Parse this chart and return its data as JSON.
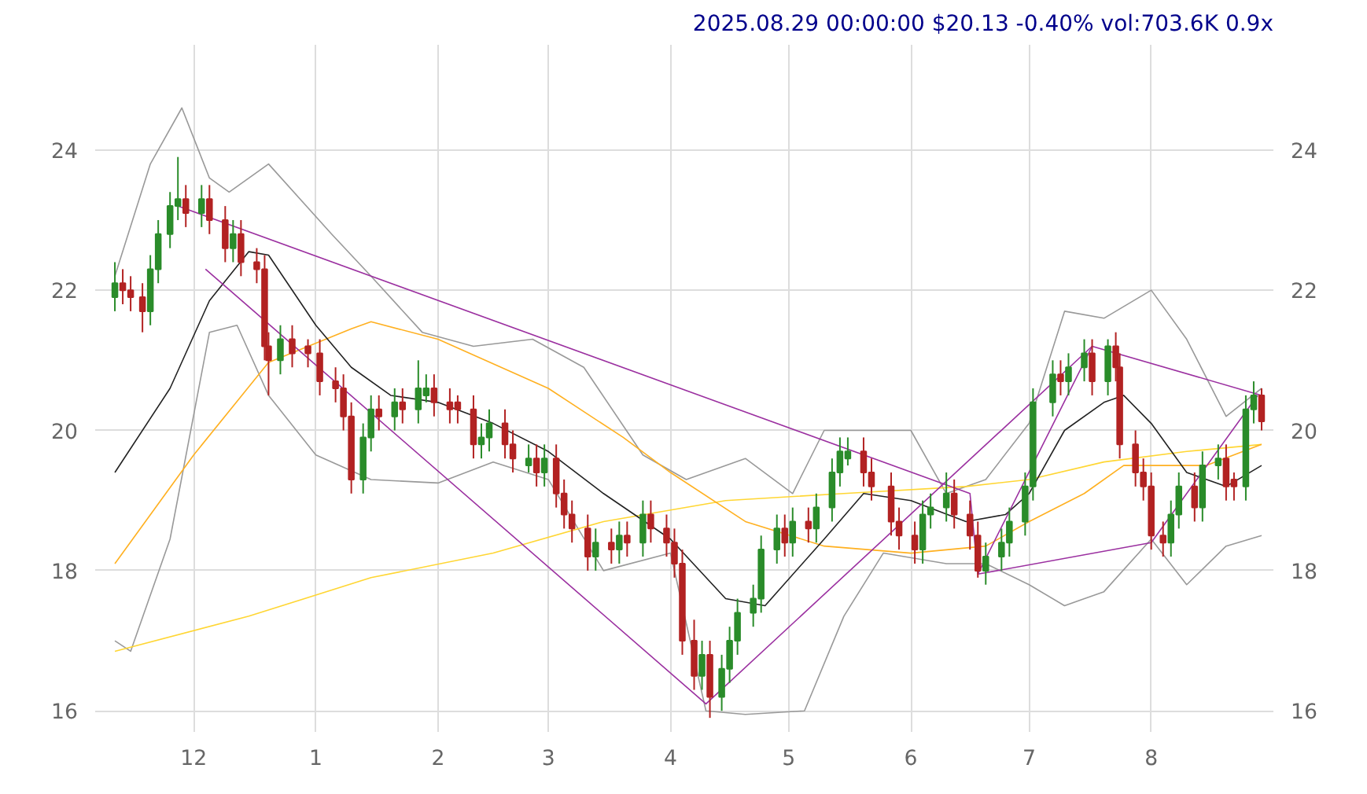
{
  "chart_data": {
    "type": "candlestick",
    "title": "2025.08.29 00:00:00 $20.13 -0.40% vol:703.6K 0.9x",
    "x": [
      "2024-11-11",
      "2024-11-13",
      "2024-11-15",
      "2024-11-18",
      "2024-11-20",
      "2024-11-22",
      "2024-11-25",
      "2024-11-27",
      "2024-11-29",
      "2024-12-03",
      "2024-12-05",
      "2024-12-09",
      "2024-12-11",
      "2024-12-13",
      "2024-12-17",
      "2024-12-19",
      "2024-12-20",
      "2024-12-23",
      "2024-12-26",
      "2024-12-30",
      "2025-01-02",
      "2025-01-06",
      "2025-01-08",
      "2025-01-10",
      "2025-01-13",
      "2025-01-15",
      "2025-01-17",
      "2025-01-21",
      "2025-01-23",
      "2025-01-27",
      "2025-01-29",
      "2025-01-31",
      "2025-02-04",
      "2025-02-06",
      "2025-02-10",
      "2025-02-12",
      "2025-02-14",
      "2025-02-18",
      "2025-02-20",
      "2025-02-24",
      "2025-02-26",
      "2025-02-28",
      "2025-03-03",
      "2025-03-05",
      "2025-03-07",
      "2025-03-11",
      "2025-03-13",
      "2025-03-17",
      "2025-03-19",
      "2025-03-21",
      "2025-03-25",
      "2025-03-27",
      "2025-03-31",
      "2025-04-02",
      "2025-04-04",
      "2025-04-07",
      "2025-04-09",
      "2025-04-11",
      "2025-04-14",
      "2025-04-16",
      "2025-04-18",
      "2025-04-22",
      "2025-04-24",
      "2025-04-28",
      "2025-04-30",
      "2025-05-02",
      "2025-05-06",
      "2025-05-08",
      "2025-05-12",
      "2025-05-14",
      "2025-05-16",
      "2025-05-20",
      "2025-05-22",
      "2025-05-27",
      "2025-05-29",
      "2025-06-02",
      "2025-06-04",
      "2025-06-06",
      "2025-06-10",
      "2025-06-12",
      "2025-06-16",
      "2025-06-18",
      "2025-06-20",
      "2025-06-24",
      "2025-06-26",
      "2025-06-30",
      "2025-07-02",
      "2025-07-07",
      "2025-07-09",
      "2025-07-11",
      "2025-07-15",
      "2025-07-17",
      "2025-07-21",
      "2025-07-23",
      "2025-07-24",
      "2025-07-28",
      "2025-07-30",
      "2025-08-01",
      "2025-08-04",
      "2025-08-06",
      "2025-08-08",
      "2025-08-12",
      "2025-08-14",
      "2025-08-18",
      "2025-08-20",
      "2025-08-22",
      "2025-08-25",
      "2025-08-27",
      "2025-08-29"
    ],
    "ohlc": [
      [
        21.9,
        22.4,
        21.7,
        22.1
      ],
      [
        22.1,
        22.3,
        21.8,
        22.0
      ],
      [
        22.0,
        22.2,
        21.7,
        21.9
      ],
      [
        21.9,
        22.1,
        21.4,
        21.7
      ],
      [
        21.7,
        22.5,
        21.5,
        22.3
      ],
      [
        22.3,
        23.0,
        22.1,
        22.8
      ],
      [
        22.8,
        23.4,
        22.6,
        23.2
      ],
      [
        23.2,
        23.9,
        23.0,
        23.3
      ],
      [
        23.3,
        23.5,
        22.9,
        23.1
      ],
      [
        23.1,
        23.5,
        22.9,
        23.3
      ],
      [
        23.3,
        23.5,
        22.8,
        23.0
      ],
      [
        23.0,
        23.2,
        22.4,
        22.6
      ],
      [
        22.6,
        23.0,
        22.4,
        22.8
      ],
      [
        22.8,
        23.0,
        22.2,
        22.4
      ],
      [
        22.4,
        22.6,
        22.1,
        22.3
      ],
      [
        22.3,
        22.5,
        21.0,
        21.2
      ],
      [
        21.2,
        21.4,
        20.5,
        21.0
      ],
      [
        21.0,
        21.5,
        20.8,
        21.3
      ],
      [
        21.3,
        21.5,
        20.9,
        21.1
      ],
      [
        21.2,
        21.3,
        20.9,
        21.1
      ],
      [
        21.1,
        21.3,
        20.5,
        20.7
      ],
      [
        20.7,
        20.9,
        20.4,
        20.6
      ],
      [
        20.6,
        20.8,
        20.0,
        20.2
      ],
      [
        20.2,
        20.4,
        19.1,
        19.3
      ],
      [
        19.3,
        20.1,
        19.1,
        19.9
      ],
      [
        19.9,
        20.5,
        19.7,
        20.3
      ],
      [
        20.3,
        20.5,
        20.0,
        20.2
      ],
      [
        20.2,
        20.6,
        20.0,
        20.4
      ],
      [
        20.4,
        20.6,
        20.1,
        20.3
      ],
      [
        20.3,
        21.0,
        20.1,
        20.6
      ],
      [
        20.5,
        20.8,
        20.4,
        20.6
      ],
      [
        20.6,
        20.8,
        20.2,
        20.4
      ],
      [
        20.4,
        20.6,
        20.1,
        20.3
      ],
      [
        20.4,
        20.5,
        20.1,
        20.3
      ],
      [
        20.3,
        20.5,
        19.6,
        19.8
      ],
      [
        19.8,
        20.1,
        19.6,
        19.9
      ],
      [
        19.9,
        20.3,
        19.7,
        20.1
      ],
      [
        20.1,
        20.3,
        19.6,
        19.8
      ],
      [
        19.8,
        20.0,
        19.4,
        19.6
      ],
      [
        19.5,
        19.8,
        19.4,
        19.6
      ],
      [
        19.6,
        19.8,
        19.2,
        19.4
      ],
      [
        19.4,
        19.8,
        19.2,
        19.6
      ],
      [
        19.6,
        19.8,
        18.9,
        19.1
      ],
      [
        19.1,
        19.3,
        18.6,
        18.8
      ],
      [
        18.8,
        19.0,
        18.4,
        18.6
      ],
      [
        18.6,
        18.8,
        18.0,
        18.2
      ],
      [
        18.2,
        18.6,
        18.0,
        18.4
      ],
      [
        18.4,
        18.6,
        18.1,
        18.3
      ],
      [
        18.3,
        18.7,
        18.1,
        18.5
      ],
      [
        18.5,
        18.7,
        18.2,
        18.4
      ],
      [
        18.4,
        19.0,
        18.2,
        18.8
      ],
      [
        18.8,
        19.0,
        18.4,
        18.6
      ],
      [
        18.6,
        18.8,
        18.2,
        18.4
      ],
      [
        18.4,
        18.6,
        17.9,
        18.1
      ],
      [
        18.1,
        18.3,
        16.8,
        17.0
      ],
      [
        17.0,
        17.3,
        16.3,
        16.5
      ],
      [
        16.5,
        17.0,
        16.3,
        16.8
      ],
      [
        16.8,
        17.0,
        15.9,
        16.2
      ],
      [
        16.2,
        16.8,
        16.0,
        16.6
      ],
      [
        16.6,
        17.2,
        16.4,
        17.0
      ],
      [
        17.0,
        17.6,
        16.8,
        17.4
      ],
      [
        17.4,
        17.8,
        17.2,
        17.6
      ],
      [
        17.6,
        18.5,
        17.4,
        18.3
      ],
      [
        18.3,
        18.8,
        18.1,
        18.6
      ],
      [
        18.6,
        18.8,
        18.2,
        18.4
      ],
      [
        18.4,
        18.9,
        18.2,
        18.7
      ],
      [
        18.7,
        18.9,
        18.4,
        18.6
      ],
      [
        18.6,
        19.1,
        18.4,
        18.9
      ],
      [
        18.9,
        19.6,
        18.7,
        19.4
      ],
      [
        19.4,
        19.9,
        19.2,
        19.7
      ],
      [
        19.6,
        19.9,
        19.5,
        19.7
      ],
      [
        19.7,
        19.9,
        19.2,
        19.4
      ],
      [
        19.4,
        19.6,
        19.0,
        19.2
      ],
      [
        19.2,
        19.4,
        18.5,
        18.7
      ],
      [
        18.7,
        18.9,
        18.3,
        18.5
      ],
      [
        18.5,
        18.7,
        18.1,
        18.3
      ],
      [
        18.3,
        19.0,
        18.1,
        18.8
      ],
      [
        18.8,
        19.1,
        18.6,
        18.9
      ],
      [
        18.9,
        19.4,
        18.7,
        19.1
      ],
      [
        19.1,
        19.3,
        18.6,
        18.8
      ],
      [
        18.8,
        19.0,
        18.3,
        18.5
      ],
      [
        18.5,
        18.7,
        17.9,
        18.0
      ],
      [
        18.0,
        18.4,
        17.8,
        18.2
      ],
      [
        18.2,
        18.6,
        18.0,
        18.4
      ],
      [
        18.4,
        18.9,
        18.2,
        18.7
      ],
      [
        18.7,
        19.4,
        18.5,
        19.2
      ],
      [
        19.2,
        20.6,
        19.0,
        20.4
      ],
      [
        20.4,
        21.0,
        20.2,
        20.8
      ],
      [
        20.8,
        21.0,
        20.5,
        20.7
      ],
      [
        20.7,
        21.1,
        20.5,
        20.9
      ],
      [
        20.9,
        21.3,
        20.7,
        21.1
      ],
      [
        21.1,
        21.3,
        20.5,
        20.7
      ],
      [
        20.7,
        21.3,
        20.5,
        21.2
      ],
      [
        21.2,
        21.4,
        20.7,
        20.9
      ],
      [
        20.9,
        21.1,
        19.6,
        19.8
      ],
      [
        19.8,
        20.0,
        19.2,
        19.4
      ],
      [
        19.4,
        19.6,
        19.0,
        19.2
      ],
      [
        19.2,
        19.4,
        18.3,
        18.5
      ],
      [
        18.5,
        18.7,
        18.2,
        18.4
      ],
      [
        18.4,
        19.0,
        18.2,
        18.8
      ],
      [
        18.8,
        19.4,
        18.6,
        19.2
      ],
      [
        19.2,
        19.4,
        18.7,
        18.9
      ],
      [
        18.9,
        19.7,
        18.7,
        19.5
      ],
      [
        19.5,
        19.8,
        19.3,
        19.6
      ],
      [
        19.6,
        19.8,
        19.0,
        19.2
      ],
      [
        19.3,
        19.4,
        19.0,
        19.2
      ],
      [
        19.2,
        20.5,
        19.0,
        20.3
      ],
      [
        20.3,
        20.7,
        20.1,
        20.5
      ],
      [
        20.5,
        20.6,
        20.0,
        20.13
      ]
    ],
    "colors": [
      "#2a8c2a",
      "#b22222",
      "#b22222",
      "#b22222",
      "#2a8c2a",
      "#2a8c2a",
      "#2a8c2a",
      "#2a8c2a",
      "#b22222",
      "#2a8c2a",
      "#b22222",
      "#b22222",
      "#2a8c2a",
      "#b22222",
      "#b22222",
      "#b22222",
      "#b22222",
      "#2a8c2a",
      "#b22222",
      "#b22222",
      "#b22222",
      "#b22222",
      "#b22222",
      "#b22222",
      "#2a8c2a",
      "#2a8c2a",
      "#b22222",
      "#2a8c2a",
      "#b22222",
      "#2a8c2a",
      "#2a8c2a",
      "#b22222",
      "#b22222",
      "#b22222",
      "#b22222",
      "#2a8c2a",
      "#2a8c2a",
      "#b22222",
      "#b22222",
      "#2a8c2a",
      "#b22222",
      "#2a8c2a",
      "#b22222",
      "#b22222",
      "#b22222",
      "#b22222",
      "#2a8c2a",
      "#b22222",
      "#2a8c2a",
      "#b22222",
      "#2a8c2a",
      "#b22222",
      "#b22222",
      "#b22222",
      "#b22222",
      "#b22222",
      "#2a8c2a",
      "#b22222",
      "#2a8c2a",
      "#2a8c2a",
      "#2a8c2a",
      "#2a8c2a",
      "#2a8c2a",
      "#2a8c2a",
      "#b22222",
      "#2a8c2a",
      "#b22222",
      "#2a8c2a",
      "#2a8c2a",
      "#2a8c2a",
      "#2a8c2a",
      "#b22222",
      "#b22222",
      "#b22222",
      "#b22222",
      "#b22222",
      "#2a8c2a",
      "#2a8c2a",
      "#2a8c2a",
      "#b22222",
      "#b22222",
      "#b22222",
      "#2a8c2a",
      "#2a8c2a",
      "#2a8c2a",
      "#2a8c2a",
      "#2a8c2a",
      "#2a8c2a",
      "#b22222",
      "#2a8c2a",
      "#2a8c2a",
      "#b22222",
      "#2a8c2a",
      "#b22222",
      "#b22222",
      "#b22222",
      "#b22222",
      "#b22222",
      "#b22222",
      "#2a8c2a",
      "#2a8c2a",
      "#b22222",
      "#2a8c2a",
      "#2a8c2a",
      "#b22222",
      "#b22222",
      "#2a8c2a",
      "#2a8c2a",
      "#b22222"
    ],
    "series": [
      {
        "type": "line",
        "color": "#999999",
        "x": [
          "2024-11-11",
          "2024-11-20",
          "2024-11-28",
          "2024-12-05",
          "2024-12-10",
          "2024-12-20",
          "2025-01-05",
          "2025-01-15",
          "2025-01-28",
          "2025-02-10",
          "2025-02-25",
          "2025-03-10",
          "2025-03-25",
          "2025-04-05",
          "2025-04-20",
          "2025-05-02",
          "2025-05-10",
          "2025-05-20",
          "2025-06-01",
          "2025-06-10",
          "2025-06-20",
          "2025-07-01",
          "2025-07-10",
          "2025-07-20",
          "2025-08-01",
          "2025-08-10",
          "2025-08-20",
          "2025-08-29"
        ],
        "values": [
          22.2,
          23.8,
          24.6,
          23.6,
          23.4,
          23.8,
          22.8,
          22.2,
          21.4,
          21.2,
          21.3,
          20.9,
          19.65,
          19.3,
          19.6,
          19.1,
          20.0,
          20.0,
          20.0,
          19.1,
          19.3,
          20.1,
          21.7,
          21.6,
          22.0,
          21.3,
          20.2,
          20.6
        ]
      },
      {
        "type": "line",
        "color": "#999999",
        "x": [
          "2024-11-11",
          "2024-11-15",
          "2024-11-25",
          "2024-12-05",
          "2024-12-12",
          "2024-12-20",
          "2025-01-01",
          "2025-01-15",
          "2025-02-01",
          "2025-02-15",
          "2025-03-01",
          "2025-03-15",
          "2025-04-01",
          "2025-04-10",
          "2025-04-20",
          "2025-05-05",
          "2025-05-15",
          "2025-05-25",
          "2025-06-10",
          "2025-06-20",
          "2025-07-01",
          "2025-07-10",
          "2025-07-20",
          "2025-08-01",
          "2025-08-10",
          "2025-08-20",
          "2025-08-29"
        ],
        "values": [
          17.0,
          16.85,
          18.45,
          21.4,
          21.5,
          20.5,
          19.65,
          19.3,
          19.25,
          19.55,
          19.3,
          18.0,
          18.25,
          16.0,
          15.95,
          16.0,
          17.35,
          18.25,
          18.1,
          18.1,
          17.8,
          17.5,
          17.7,
          18.45,
          17.8,
          18.35,
          18.5
        ]
      },
      {
        "type": "line",
        "color": "#ffd633",
        "x": [
          "2024-11-11",
          "2024-12-15",
          "2025-01-15",
          "2025-02-15",
          "2025-03-15",
          "2025-04-15",
          "2025-05-15",
          "2025-06-15",
          "2025-07-01",
          "2025-07-20",
          "2025-08-10",
          "2025-08-29"
        ],
        "values": [
          16.85,
          17.35,
          17.9,
          18.25,
          18.7,
          19.0,
          19.1,
          19.2,
          19.3,
          19.55,
          19.7,
          19.8
        ]
      },
      {
        "type": "line",
        "color": "#ffb020",
        "x": [
          "2024-11-11",
          "2024-12-01",
          "2024-12-20",
          "2025-01-10",
          "2025-01-15",
          "2025-02-01",
          "2025-03-01",
          "2025-03-20",
          "2025-04-01",
          "2025-04-20",
          "2025-05-10",
          "2025-06-01",
          "2025-06-20",
          "2025-07-01",
          "2025-07-15",
          "2025-07-25",
          "2025-08-01",
          "2025-08-15",
          "2025-08-29"
        ],
        "values": [
          18.1,
          19.65,
          20.97,
          21.45,
          21.55,
          21.3,
          20.6,
          19.9,
          19.4,
          18.7,
          18.35,
          18.25,
          18.35,
          18.7,
          19.1,
          19.5,
          19.5,
          19.5,
          19.8
        ]
      },
      {
        "type": "line",
        "color": "#222222",
        "x": [
          "2024-11-11",
          "2024-11-25",
          "2024-12-05",
          "2024-12-15",
          "2024-12-20",
          "2025-01-01",
          "2025-01-10",
          "2025-01-20",
          "2025-02-01",
          "2025-02-15",
          "2025-03-01",
          "2025-03-15",
          "2025-04-01",
          "2025-04-15",
          "2025-04-25",
          "2025-05-10",
          "2025-05-20",
          "2025-06-01",
          "2025-06-15",
          "2025-06-25",
          "2025-07-01",
          "2025-07-10",
          "2025-07-20",
          "2025-07-25",
          "2025-08-01",
          "2025-08-10",
          "2025-08-20",
          "2025-08-29"
        ],
        "values": [
          19.4,
          20.6,
          21.85,
          22.55,
          22.5,
          21.5,
          20.9,
          20.5,
          20.4,
          20.1,
          19.7,
          19.1,
          18.45,
          17.6,
          17.5,
          18.45,
          19.1,
          19.0,
          18.7,
          18.8,
          19.1,
          20.0,
          20.4,
          20.5,
          20.1,
          19.4,
          19.2,
          19.5
        ]
      },
      {
        "type": "line",
        "color": "#9b30a0",
        "x": [
          "2024-11-27",
          "2025-06-16",
          "2025-06-18",
          "2025-07-17",
          "2025-08-29"
        ],
        "values": [
          23.2,
          19.1,
          17.95,
          21.2,
          20.5
        ]
      },
      {
        "type": "line",
        "color": "#9b30a0",
        "x": [
          "2024-12-04",
          "2025-04-10",
          "2025-07-17"
        ],
        "values": [
          22.3,
          16.1,
          21.2
        ]
      },
      {
        "type": "line",
        "color": "#9b30a0",
        "x": [
          "2025-06-18",
          "2025-08-01",
          "2025-08-28"
        ],
        "values": [
          17.95,
          18.4,
          20.5
        ]
      }
    ],
    "xlim": [
      "2024-11-06",
      "2025-09-01"
    ],
    "xticks": [
      {
        "value": "2024-12-01",
        "label": "12"
      },
      {
        "value": "2025-01-01",
        "label": "1"
      },
      {
        "value": "2025-02-01",
        "label": "2"
      },
      {
        "value": "2025-03-01",
        "label": "3"
      },
      {
        "value": "2025-04-01",
        "label": "4"
      },
      {
        "value": "2025-05-01",
        "label": "5"
      },
      {
        "value": "2025-06-01",
        "label": "6"
      },
      {
        "value": "2025-07-01",
        "label": "7"
      },
      {
        "value": "2025-08-01",
        "label": "8"
      }
    ],
    "ylim": [
      15.7,
      25.5
    ],
    "yticks": [
      16,
      18,
      20,
      22,
      24
    ],
    "y2lim": [
      15.7,
      25.5
    ],
    "y2ticks": [
      16,
      18,
      20,
      22,
      24
    ],
    "grid": true
  }
}
